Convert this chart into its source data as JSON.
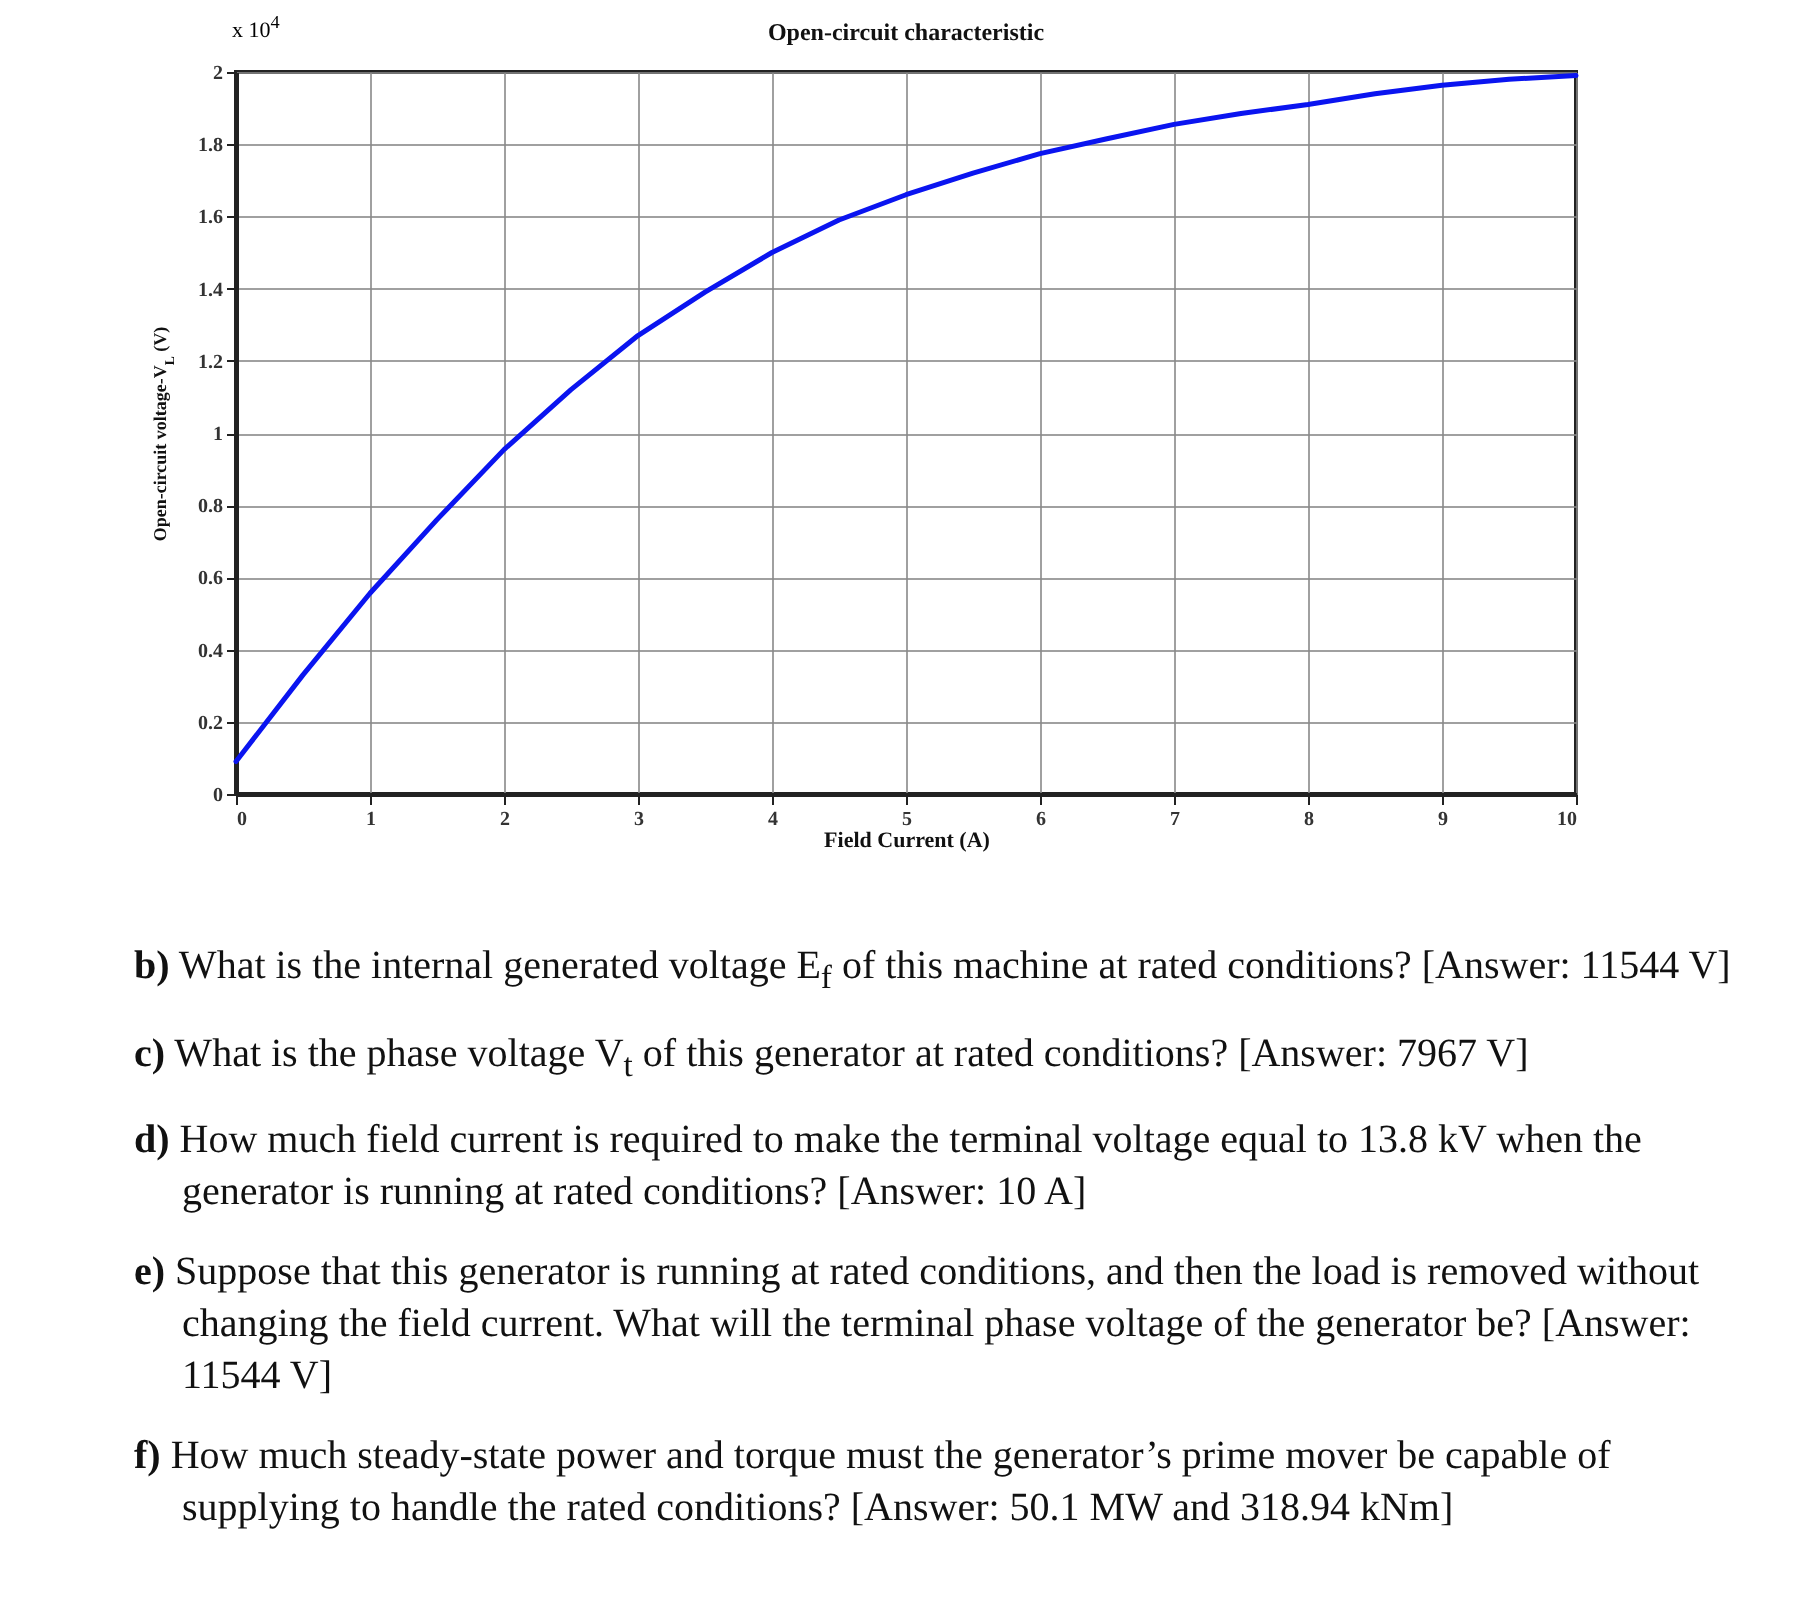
{
  "chart_data": {
    "type": "line",
    "title": "Open-circuit characteristic",
    "xlabel": "Field Current (A)",
    "ylabel": "Open-circuit voltage-V$_{L}$ (V)",
    "x": [
      0,
      0.5,
      1,
      1.5,
      2,
      2.5,
      3,
      3.5,
      4,
      4.5,
      5,
      5.5,
      6,
      6.5,
      7,
      7.5,
      8,
      8.5,
      9,
      9.5,
      10
    ],
    "series": [
      {
        "color": "#0a14f0",
        "values": [
          0.09,
          0.33,
          0.556,
          0.76,
          0.954,
          1.12,
          1.27,
          1.39,
          1.5,
          1.59,
          1.66,
          1.72,
          1.774,
          1.815,
          1.855,
          1.885,
          1.91,
          1.94,
          1.963,
          1.98,
          1.99
        ]
      }
    ],
    "xlim": [
      0,
      10
    ],
    "xticks": [
      0,
      1,
      2,
      3,
      4,
      5,
      6,
      7,
      8,
      9,
      10
    ],
    "ylim": [
      0,
      2
    ],
    "yticks": [
      0,
      0.2,
      0.4,
      0.6,
      0.8,
      1,
      1.2,
      1.4,
      1.6,
      1.8,
      2
    ],
    "grid": true,
    "legend": false,
    "marker": "none",
    "line_style": "solid",
    "annotations": [
      "x 10$^{4}$",
      "b) What is the internal generated voltage E$_{f}$ of this machine at rated conditions? [Answer: 11544 V]",
      "c) What is the phase voltage V$_{t}$ of this generator at rated conditions? [Answer: 7967 V]",
      "d) How much field current is required to make the terminal voltage equal to 13.8 kV when the generator is running at rated conditions? [Answer: 10 A]",
      "e) Suppose that this generator is running at rated conditions, and then the load is removed without changing the field current. What will the terminal phase voltage of the generator be? [Answer: 11544 V]",
      "f) How much steady-state power and torque must the generator’s prime mover be capable of supplying to handle the rated conditions? [Answer: 50.1 MW and 318.94 kNm]"
    ]
  }
}
